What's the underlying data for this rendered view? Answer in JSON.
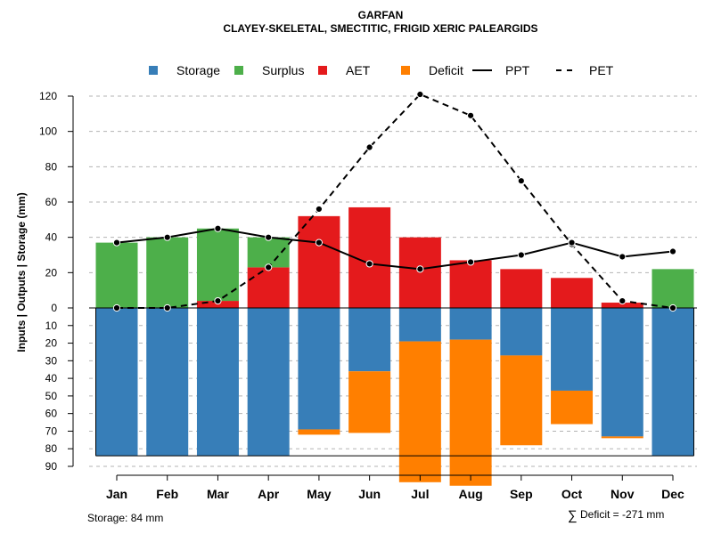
{
  "chart_data": {
    "type": "bar",
    "title": "GARFAN",
    "subtitle": "CLAYEY-SKELETAL, SMECTITIC, FRIGID XERIC PALEARGIDS",
    "ylabel": "Inputs | Outputs | Storage     (mm)",
    "categories": [
      "Jan",
      "Feb",
      "Mar",
      "Apr",
      "May",
      "Jun",
      "Jul",
      "Aug",
      "Sep",
      "Oct",
      "Nov",
      "Dec"
    ],
    "y_upper_ticks": [
      "0",
      "20",
      "40",
      "60",
      "80",
      "100",
      "120"
    ],
    "y_lower_ticks": [
      "10",
      "20",
      "30",
      "40",
      "50",
      "60",
      "70",
      "80",
      "90"
    ],
    "ylim_upper": [
      0,
      120
    ],
    "ylim_lower": [
      0,
      90
    ],
    "grid": true,
    "legend_position": "top",
    "legend": [
      {
        "label": "Storage",
        "kind": "box",
        "color": "#377eb8"
      },
      {
        "label": "Surplus",
        "kind": "box",
        "color": "#4daf4a"
      },
      {
        "label": "AET",
        "kind": "box",
        "color": "#e41a1c"
      },
      {
        "label": "Deficit",
        "kind": "box",
        "color": "#ff7f00"
      },
      {
        "label": "PPT",
        "kind": "line-solid",
        "color": "#000000"
      },
      {
        "label": "PET",
        "kind": "line-dashed",
        "color": "#000000"
      }
    ],
    "series": [
      {
        "name": "AET",
        "color": "#e41a1c",
        "values": [
          0,
          0,
          4,
          23,
          52,
          57,
          40,
          27,
          22,
          17,
          3,
          0
        ]
      },
      {
        "name": "Surplus",
        "color": "#4daf4a",
        "values": [
          37,
          40,
          41,
          17,
          0,
          0,
          0,
          0,
          0,
          0,
          0,
          22
        ]
      },
      {
        "name": "Storage",
        "color": "#377eb8",
        "values": [
          84,
          84,
          84,
          84,
          69,
          36,
          19,
          18,
          27,
          47,
          73,
          84
        ]
      },
      {
        "name": "Deficit",
        "color": "#ff7f00",
        "values": [
          0,
          0,
          0,
          0,
          3,
          35,
          80,
          83,
          51,
          19,
          1,
          0
        ]
      },
      {
        "name": "PPT",
        "color": "#000000",
        "values": [
          37,
          40,
          45,
          40,
          37,
          25,
          22,
          26,
          30,
          37,
          29,
          32
        ]
      },
      {
        "name": "PET",
        "color": "#000000",
        "values": [
          0,
          0,
          4,
          23,
          56,
          91,
          121,
          109,
          72,
          36,
          4,
          0
        ]
      }
    ],
    "storage_capacity": 84,
    "footer_left": "Storage: 84 mm",
    "footer_right_symbol": "∑",
    "footer_right": "Deficit = -271 mm"
  }
}
